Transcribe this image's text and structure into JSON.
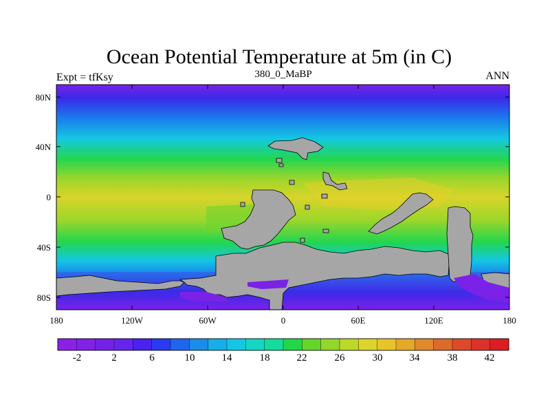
{
  "title": "Ocean Potential Temperature at 5m (in C)",
  "left_label": "Expt = tfKsy",
  "center_label": "380_0_MaBP",
  "right_label": "ANN",
  "lat_ticks": [
    "80N",
    "40N",
    "0",
    "40S",
    "80S"
  ],
  "lon_ticks": [
    "180",
    "120W",
    "60W",
    "0",
    "60E",
    "120E",
    "180"
  ],
  "colorbar": {
    "labels": [
      "-2",
      "2",
      "6",
      "10",
      "14",
      "18",
      "22",
      "26",
      "30",
      "34",
      "38",
      "42"
    ],
    "colors": [
      "#8a22e6",
      "#8022e8",
      "#7422ea",
      "#6624ec",
      "#4a22ee",
      "#2a3af0",
      "#1e66ee",
      "#1a8cec",
      "#17aeea",
      "#14c6e4",
      "#14d6c4",
      "#14dc9a",
      "#22d64a",
      "#66d42a",
      "#94d62a",
      "#bcd82a",
      "#dcd42a",
      "#e6c42a",
      "#e4a82a",
      "#e08a2a",
      "#dc6a2a",
      "#dc4a2a",
      "#dc322a",
      "#dc1e22"
    ]
  },
  "map": {
    "ocean_colors": {
      "pole": "#7a22e8",
      "deep_blue": "#3a2ae8",
      "mid_blue": "#1a7cee",
      "cyan": "#14c8e2",
      "green": "#22d650",
      "lime": "#9ed62a",
      "yellow": "#d8d42a",
      "land": "#a6a6a6"
    }
  }
}
